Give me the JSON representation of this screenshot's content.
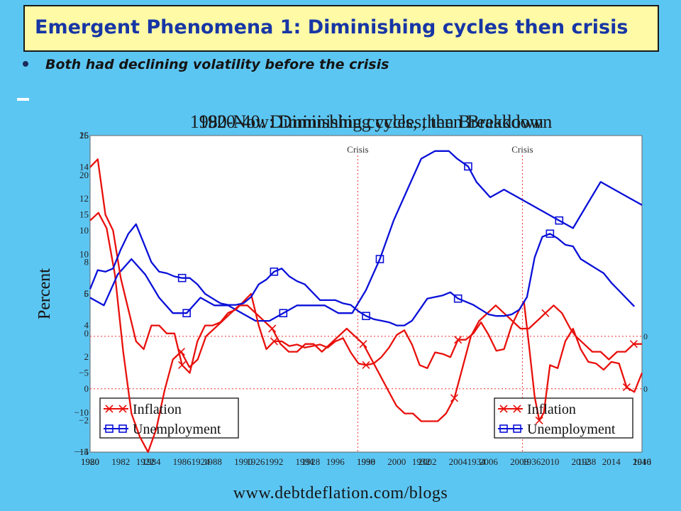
{
  "slide": {
    "title": "Emergent Phenomena 1: Diminishing cycles then crisis",
    "bullet": "Both had declining volatility before the crisis",
    "footer": "www.debtdeflation.com/blogs"
  },
  "colors": {
    "inflation": "#e8100c",
    "unemployment": "#0a10d8",
    "background": "#5cc6f3",
    "title_bg": "#fffaa5",
    "title_text": "#1736a6"
  },
  "chart_data": [
    {
      "type": "line",
      "title": "1920-40: Diminishing cycles, then Breakdown",
      "ylabel": "Percent",
      "x_ticks": [
        "1920",
        "1922",
        "1924",
        "1926",
        "1928",
        "1930",
        "1932",
        "1934",
        "1936",
        "1938",
        "1940"
      ],
      "ylim": [
        -15,
        26
      ],
      "y_ticks": [
        "−15",
        "−10",
        "−5",
        "0",
        "5",
        "10",
        "15",
        "20",
        "25"
      ],
      "annotations": [
        {
          "text": "Crisis",
          "x": 1929.7
        }
      ],
      "legend": {
        "position": "bottom-left",
        "entries": [
          "Inflation",
          "Unemployment"
        ]
      },
      "series": [
        {
          "name": "Inflation",
          "x": [
            1920,
            1920.3,
            1920.6,
            1920.9,
            1921.2,
            1921.5,
            1921.8,
            1922.1,
            1922.4,
            1922.7,
            1923,
            1923.3,
            1923.6,
            1923.9,
            1924.2,
            1924.5,
            1924.8,
            1925.1,
            1925.4,
            1925.7,
            1926,
            1926.3,
            1926.6,
            1926.9,
            1927.2,
            1927.5,
            1927.8,
            1928.1,
            1928.4,
            1928.7,
            1929,
            1929.3,
            1929.6,
            1929.9,
            1930.2,
            1930.5,
            1930.8,
            1931.1,
            1931.4,
            1931.7,
            1932,
            1932.3,
            1932.6,
            1932.9,
            1933.2,
            1933.5,
            1933.8,
            1934.1,
            1934.4,
            1934.7,
            1935,
            1935.3,
            1935.6,
            1935.9,
            1936.2,
            1936.5,
            1936.8,
            1937.1,
            1937.4,
            1937.6,
            1937.9,
            1938.2,
            1938.5,
            1938.8,
            1939.1,
            1939.4,
            1939.7,
            1940
          ],
          "y": [
            15,
            16,
            14,
            8,
            -2,
            -10,
            -13,
            -15,
            -12,
            -7,
            -3,
            -2,
            -4,
            -3,
            0,
            1,
            2,
            3,
            4,
            4,
            3,
            2,
            1,
            -1,
            -2,
            -2,
            -1,
            -1,
            -2,
            -1,
            0,
            1,
            0,
            -1,
            -3,
            -5,
            -7,
            -9,
            -10,
            -10,
            -11,
            -11,
            -11,
            -10,
            -8,
            -4,
            0,
            2,
            3,
            4,
            3,
            2,
            1,
            1,
            2,
            3,
            4,
            3,
            1,
            0,
            -1,
            -2,
            -2,
            -3,
            -2,
            -2,
            -1,
            -1
          ]
        },
        {
          "name": "Unemployment",
          "x": [
            1920,
            1920.5,
            1921,
            1921.5,
            1922,
            1922.5,
            1923,
            1923.5,
            1924,
            1924.5,
            1925,
            1925.5,
            1926,
            1926.5,
            1927,
            1927.5,
            1928,
            1928.5,
            1929,
            1929.5,
            1930,
            1930.5,
            1931,
            1931.5,
            1932,
            1932.5,
            1933,
            1933.3,
            1933.7,
            1934,
            1934.5,
            1935,
            1935.5,
            1936,
            1936.5,
            1937,
            1937.5,
            1938,
            1938.5,
            1939,
            1939.5,
            1940
          ],
          "y": [
            5,
            4,
            8,
            10,
            8,
            5,
            3,
            3,
            5,
            4,
            4,
            3,
            2,
            2,
            3,
            4,
            4,
            4,
            3,
            3,
            6,
            10,
            15,
            19,
            23,
            24,
            24,
            23,
            22,
            20,
            18,
            19,
            18,
            17,
            16,
            15,
            14,
            17,
            20,
            19,
            18,
            17
          ]
        }
      ]
    },
    {
      "type": "line",
      "title": "1980-Now: Diminishing cycles, then Breakdown",
      "ylabel": "Percent",
      "x_ticks": [
        "1980",
        "1982",
        "1984",
        "1986",
        "1988",
        "1990",
        "1992",
        "1994",
        "1996",
        "1998",
        "2000",
        "2002",
        "2004",
        "2006",
        "2008",
        "2010",
        "2012",
        "2014",
        "2016"
      ],
      "ylim": [
        -4,
        16
      ],
      "y_ticks": [
        "−4",
        "−2",
        "0",
        "2",
        "4",
        "6",
        "8",
        "10",
        "12",
        "14",
        "16"
      ],
      "annotations": [
        {
          "text": "Crisis",
          "x": 2008.2
        }
      ],
      "legend": {
        "position": "bottom-right",
        "entries": [
          "Inflation",
          "Unemployment"
        ]
      },
      "series": [
        {
          "name": "Inflation",
          "x": [
            1980,
            1980.5,
            1981,
            1981.5,
            1982,
            1982.5,
            1983,
            1983.5,
            1984,
            1984.5,
            1985,
            1985.5,
            1986,
            1986.5,
            1987,
            1987.5,
            1988,
            1988.5,
            1989,
            1989.5,
            1990,
            1990.5,
            1991,
            1991.5,
            1992,
            1992.5,
            1993,
            1993.5,
            1994,
            1994.5,
            1995,
            1995.5,
            1996,
            1996.5,
            1997,
            1997.5,
            1998,
            1998.5,
            1999,
            1999.5,
            2000,
            2000.5,
            2001,
            2001.5,
            2002,
            2002.5,
            2003,
            2003.5,
            2004,
            2004.5,
            2005,
            2005.5,
            2006,
            2006.5,
            2007,
            2007.5,
            2008,
            2008.3,
            2008.6,
            2009,
            2009.3,
            2009.6,
            2010,
            2010.5,
            2011,
            2011.5,
            2012,
            2012.5,
            2013,
            2013.5,
            2014,
            2014.5,
            2015,
            2015.5,
            2016
          ],
          "y": [
            14,
            14.5,
            11,
            10,
            7,
            5,
            3,
            2.5,
            4,
            4,
            3.5,
            3.5,
            1.5,
            1,
            3,
            4,
            4,
            4.2,
            4.8,
            5,
            5.5,
            6,
            4,
            2.5,
            3,
            3,
            2.7,
            2.8,
            2.6,
            2.7,
            2.8,
            2.6,
            3,
            3.2,
            2.3,
            1.6,
            1.5,
            1.6,
            2,
            2.6,
            3.4,
            3.7,
            2.8,
            1.5,
            1.3,
            2.3,
            2.2,
            2,
            3.1,
            3.1,
            3.5,
            4.2,
            3.4,
            2.4,
            2.5,
            4,
            5,
            5.5,
            3,
            -0.5,
            -2,
            -1.5,
            1.5,
            1.3,
            3,
            3.8,
            2.5,
            1.7,
            1.6,
            1.2,
            1.7,
            1.6,
            0.1,
            -0.2,
            1
          ]
        },
        {
          "name": "Unemployment",
          "x": [
            1980,
            1980.5,
            1981,
            1981.5,
            1982,
            1982.5,
            1983,
            1983.5,
            1984,
            1984.5,
            1985,
            1985.5,
            1986,
            1986.5,
            1987,
            1987.5,
            1988,
            1988.5,
            1989,
            1989.5,
            1990,
            1990.5,
            1991,
            1991.5,
            1992,
            1992.5,
            1993,
            1993.5,
            1994,
            1994.5,
            1995,
            1995.5,
            1996,
            1996.5,
            1997,
            1997.5,
            1998,
            1998.5,
            1999,
            1999.5,
            2000,
            2000.5,
            2001,
            2001.5,
            2002,
            2002.5,
            2003,
            2003.5,
            2004,
            2004.5,
            2005,
            2005.5,
            2006,
            2006.5,
            2007,
            2007.5,
            2008,
            2008.5,
            2009,
            2009.5,
            2010,
            2010.5,
            2011,
            2011.5,
            2012,
            2012.5,
            2013,
            2013.5,
            2014,
            2014.5,
            2015,
            2015.5
          ],
          "y": [
            6.3,
            7.5,
            7.4,
            7.6,
            8.8,
            9.8,
            10.4,
            9.2,
            8,
            7.4,
            7.3,
            7.1,
            7,
            7,
            6.6,
            6,
            5.7,
            5.4,
            5.3,
            5.3,
            5.4,
            5.8,
            6.6,
            6.9,
            7.4,
            7.6,
            7.1,
            6.8,
            6.6,
            6.1,
            5.6,
            5.6,
            5.6,
            5.4,
            5.3,
            4.9,
            4.6,
            4.4,
            4.3,
            4.2,
            4,
            4,
            4.3,
            5,
            5.7,
            5.8,
            5.9,
            6.1,
            5.7,
            5.5,
            5.3,
            5,
            4.7,
            4.6,
            4.6,
            4.7,
            5,
            5.8,
            8.3,
            9.6,
            9.8,
            9.5,
            9.1,
            9,
            8.2,
            7.9,
            7.6,
            7.3,
            6.7,
            6.2,
            5.7,
            5.2
          ]
        }
      ]
    }
  ]
}
